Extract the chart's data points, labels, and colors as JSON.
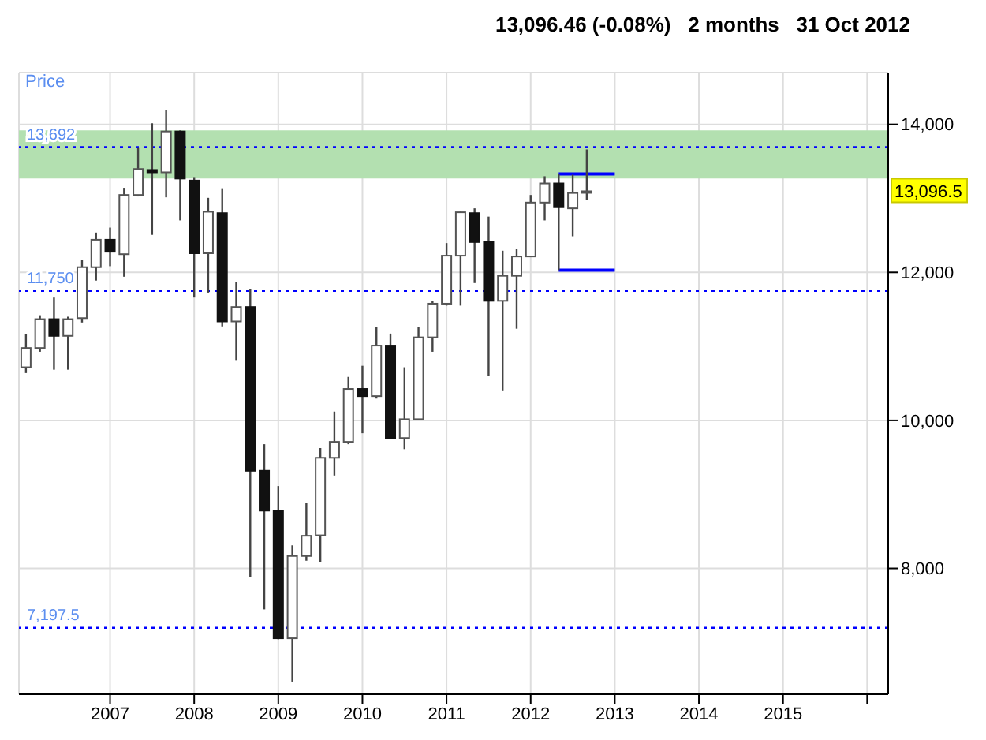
{
  "chart_data": {
    "type": "candlestick",
    "title": "13,096.46 (-0.08%)   2 months   31 Oct 2012",
    "ylabel": "Price",
    "x": [
      "2006-01",
      "2006-03",
      "2006-05",
      "2006-07",
      "2006-09",
      "2006-11",
      "2007-01",
      "2007-03",
      "2007-05",
      "2007-07",
      "2007-09",
      "2007-11",
      "2008-01",
      "2008-03",
      "2008-05",
      "2008-07",
      "2008-09",
      "2008-11",
      "2009-01",
      "2009-03",
      "2009-05",
      "2009-07",
      "2009-09",
      "2009-11",
      "2010-01",
      "2010-03",
      "2010-05",
      "2010-07",
      "2010-09",
      "2010-11",
      "2011-01",
      "2011-03",
      "2011-05",
      "2011-07",
      "2011-09",
      "2011-11",
      "2012-01",
      "2012-03",
      "2012-05",
      "2012-07",
      "2012-09"
    ],
    "ohlc": [
      [
        10718,
        11161,
        10640,
        10978
      ],
      [
        10978,
        11421,
        10927,
        11368
      ],
      [
        11368,
        11660,
        10685,
        11142
      ],
      [
        11142,
        11401,
        10685,
        11368
      ],
      [
        11382,
        12168,
        11323,
        12070
      ],
      [
        12070,
        12538,
        11889,
        12441
      ],
      [
        12441,
        12605,
        12084,
        12279
      ],
      [
        12246,
        13143,
        11941,
        13046
      ],
      [
        13046,
        13690,
        13026,
        13397
      ],
      [
        13384,
        14015,
        12507,
        13352
      ],
      [
        13352,
        14197,
        13014,
        13904
      ],
      [
        13904,
        13918,
        12702,
        13268
      ],
      [
        13241,
        13288,
        11660,
        12259
      ],
      [
        12259,
        13007,
        11727,
        12819
      ],
      [
        12800,
        13137,
        11270,
        11337
      ],
      [
        11337,
        11869,
        10816,
        11532
      ],
      [
        11532,
        11778,
        7889,
        9319
      ],
      [
        9319,
        9678,
        7447,
        8781
      ],
      [
        8781,
        9113,
        7043,
        7056
      ],
      [
        7056,
        8312,
        6471,
        8168
      ],
      [
        8168,
        8884,
        8104,
        8441
      ],
      [
        8447,
        9626,
        8084,
        9495
      ],
      [
        9495,
        10119,
        9255,
        9710
      ],
      [
        9710,
        10588,
        9678,
        10425
      ],
      [
        10425,
        10738,
        9827,
        10328
      ],
      [
        10328,
        11259,
        10295,
        11011
      ],
      [
        11011,
        11173,
        9756,
        9762
      ],
      [
        9762,
        10718,
        9612,
        10016
      ],
      [
        10016,
        11259,
        10010,
        11122
      ],
      [
        11122,
        11616,
        10927,
        11577
      ],
      [
        11577,
        12396,
        11551,
        12226
      ],
      [
        12226,
        12819,
        11551,
        12812
      ],
      [
        12800,
        12865,
        11856,
        12410
      ],
      [
        12410,
        12753,
        10601,
        11616
      ],
      [
        11616,
        12293,
        10406,
        11953
      ],
      [
        11953,
        12313,
        11239,
        12215
      ],
      [
        12215,
        13046,
        12210,
        12943
      ],
      [
        12943,
        13299,
        12702,
        13202
      ],
      [
        13202,
        13333,
        12031,
        12880
      ],
      [
        12865,
        13319,
        12488,
        13073
      ],
      [
        13090,
        13661,
        12976,
        13096
      ]
    ],
    "series": [
      {
        "type": "line",
        "x": [
          "2012-05",
          "2013-01"
        ],
        "values": [
          13330,
          13330
        ],
        "color": "#0000ff"
      },
      {
        "type": "line",
        "x": [
          "2012-05",
          "2013-01"
        ],
        "values": [
          12030,
          12030
        ],
        "color": "#0000ff"
      }
    ],
    "xlim": [
      "2005-12",
      "2016-04"
    ],
    "xticks": [
      "2007",
      "2008",
      "2009",
      "2010",
      "2011",
      "2012",
      "2013",
      "2014",
      "2015",
      {
        "value": "2016",
        "label": null
      }
    ],
    "ylim": [
      6300,
      14700
    ],
    "yticks": [
      {
        "value": 8000,
        "label": "8,000"
      },
      {
        "value": 10000,
        "label": "10,000"
      },
      {
        "value": 12000,
        "label": "12,000"
      },
      {
        "value": 14000,
        "label": "14,000"
      }
    ],
    "ref_lines": [
      {
        "axis": "y",
        "value": 13692,
        "label": "13,692",
        "color": "#0000ff",
        "line_style": "dotted"
      },
      {
        "axis": "y",
        "value": 11750,
        "label": "11,750",
        "color": "#0000ff",
        "line_style": "dotted"
      },
      {
        "axis": "y",
        "value": 7197.5,
        "label": "7,197.5",
        "color": "#0000ff",
        "line_style": "dotted"
      }
    ],
    "bands": [
      {
        "axis": "y",
        "from": 13268,
        "to": 13918,
        "color": "#b3e0b0"
      }
    ],
    "annotations": [
      "13,096.5"
    ],
    "grid": true
  }
}
